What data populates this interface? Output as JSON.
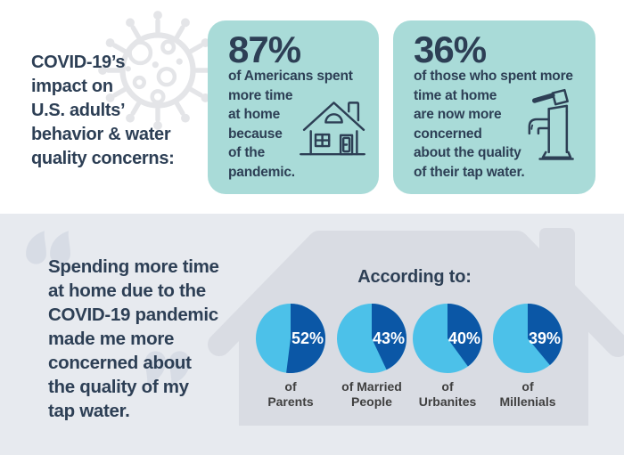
{
  "palette": {
    "navy": "#2d3f55",
    "teal_box": "#a9dbd8",
    "section_bg": "#e7eaef",
    "house_gray": "#d9dce3",
    "quote_gray": "#d7dce5",
    "virus_gray": "#e4e5e8",
    "caption_gray": "#3f3f3f",
    "pie_light_blue": "#4cc1e9",
    "pie_dark_blue": "#0b57a6"
  },
  "header": {
    "title": "COVID-19’s\nimpact on\nU.S. adults’\nbehavior & water\nquality concerns:"
  },
  "stats": [
    {
      "value": "87%",
      "description": "of Americans spent\nmore time\nat home\nbecause\nof the\npandemic.",
      "icon": "house-icon"
    },
    {
      "value": "36%",
      "description": "of those who spent more\ntime at home\nare now more\nconcerned\nabout the quality\nof their tap water.",
      "icon": "faucet-icon"
    }
  ],
  "quote": {
    "open_mark": "“",
    "close_mark": "”",
    "text": "Spending more time\nat home due to the\nCOVID-19 pandemic\nmade me more\nconcerned about\nthe quality of my\ntap water."
  },
  "chart_data": {
    "type": "pie",
    "title": "According to:",
    "slice_start": "12 o'clock, clockwise",
    "colors": {
      "slice": "#0b57a6",
      "remainder": "#4cc1e9"
    },
    "charts": [
      {
        "label": "52%",
        "value": 52,
        "caption": "of\nParents"
      },
      {
        "label": "43%",
        "value": 43,
        "caption": "of Married\nPeople"
      },
      {
        "label": "40%",
        "value": 40,
        "caption": "of\nUrbanites"
      },
      {
        "label": "39%",
        "value": 39,
        "caption": "of\nMillenials"
      }
    ]
  }
}
